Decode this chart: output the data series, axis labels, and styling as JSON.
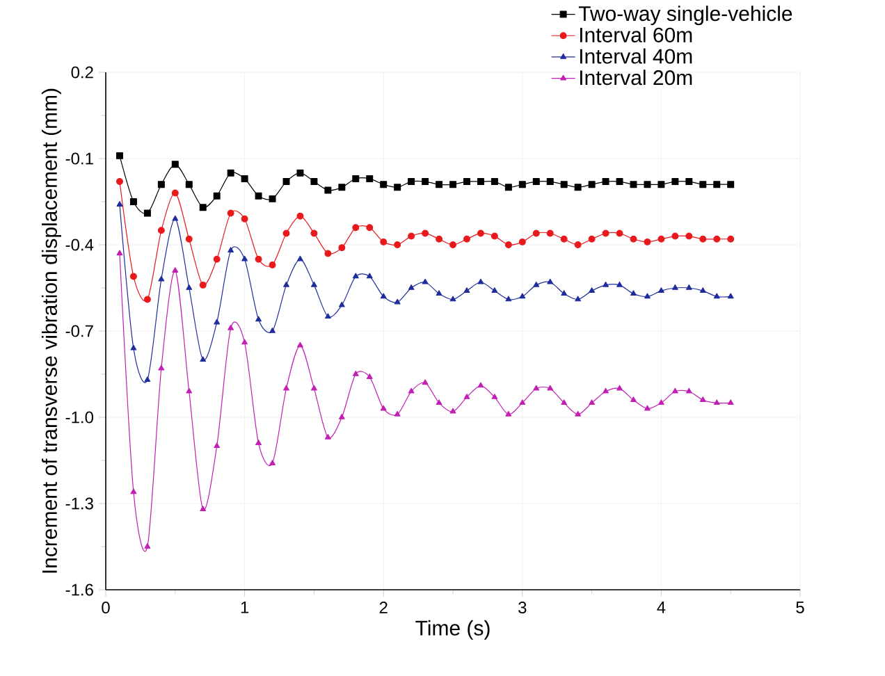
{
  "chart_data": {
    "type": "line",
    "xlabel": "Time (s)",
    "ylabel": "Increment of transverse vibration displacement (mm)",
    "x": [
      0.1,
      0.2,
      0.3,
      0.4,
      0.5,
      0.6,
      0.7,
      0.8,
      0.9,
      1.0,
      1.1,
      1.2,
      1.3,
      1.4,
      1.5,
      1.6,
      1.7,
      1.8,
      1.9,
      2.0,
      2.1,
      2.2,
      2.3,
      2.4,
      2.5,
      2.6,
      2.7,
      2.8,
      2.9,
      3.0,
      3.1,
      3.2,
      3.3,
      3.4,
      3.5,
      3.6,
      3.7,
      3.8,
      3.9,
      4.0,
      4.1,
      4.2,
      4.3,
      4.4,
      4.5
    ],
    "series": [
      {
        "name": "Two-way single-vehicle",
        "color": "#000000",
        "marker": "square",
        "values": [
          -0.09,
          -0.25,
          -0.29,
          -0.19,
          -0.12,
          -0.19,
          -0.27,
          -0.23,
          -0.15,
          -0.17,
          -0.23,
          -0.24,
          -0.18,
          -0.15,
          -0.18,
          -0.21,
          -0.2,
          -0.17,
          -0.17,
          -0.19,
          -0.2,
          -0.18,
          -0.18,
          -0.19,
          -0.19,
          -0.18,
          -0.18,
          -0.18,
          -0.2,
          -0.19,
          -0.18,
          -0.18,
          -0.19,
          -0.2,
          -0.19,
          -0.18,
          -0.18,
          -0.19,
          -0.19,
          -0.19,
          -0.18,
          -0.18,
          -0.19,
          -0.19,
          -0.19
        ]
      },
      {
        "name": "Interval 60m",
        "color": "#e8191c",
        "marker": "circle",
        "values": [
          -0.18,
          -0.51,
          -0.59,
          -0.35,
          -0.22,
          -0.38,
          -0.54,
          -0.45,
          -0.29,
          -0.31,
          -0.45,
          -0.47,
          -0.36,
          -0.3,
          -0.36,
          -0.43,
          -0.41,
          -0.34,
          -0.34,
          -0.39,
          -0.4,
          -0.37,
          -0.36,
          -0.38,
          -0.4,
          -0.38,
          -0.36,
          -0.37,
          -0.4,
          -0.39,
          -0.36,
          -0.36,
          -0.38,
          -0.4,
          -0.38,
          -0.36,
          -0.36,
          -0.38,
          -0.39,
          -0.38,
          -0.37,
          -0.37,
          -0.38,
          -0.38,
          -0.38
        ]
      },
      {
        "name": "Interval 40m",
        "color": "#1f2d9c",
        "marker": "triangle",
        "values": [
          -0.26,
          -0.76,
          -0.87,
          -0.52,
          -0.31,
          -0.55,
          -0.8,
          -0.67,
          -0.42,
          -0.45,
          -0.66,
          -0.7,
          -0.54,
          -0.45,
          -0.54,
          -0.65,
          -0.61,
          -0.51,
          -0.51,
          -0.58,
          -0.6,
          -0.55,
          -0.53,
          -0.57,
          -0.59,
          -0.56,
          -0.53,
          -0.56,
          -0.59,
          -0.58,
          -0.54,
          -0.53,
          -0.57,
          -0.59,
          -0.56,
          -0.54,
          -0.54,
          -0.57,
          -0.58,
          -0.56,
          -0.55,
          -0.55,
          -0.56,
          -0.58,
          -0.58
        ]
      },
      {
        "name": "Interval 20m",
        "color": "#c21fb3",
        "marker": "triangle",
        "values": [
          -0.43,
          -1.26,
          -1.45,
          -0.83,
          -0.49,
          -0.91,
          -1.32,
          -1.1,
          -0.69,
          -0.74,
          -1.09,
          -1.16,
          -0.9,
          -0.75,
          -0.9,
          -1.07,
          -1.0,
          -0.85,
          -0.86,
          -0.97,
          -0.99,
          -0.91,
          -0.88,
          -0.95,
          -0.98,
          -0.93,
          -0.89,
          -0.93,
          -0.99,
          -0.95,
          -0.9,
          -0.9,
          -0.95,
          -0.99,
          -0.95,
          -0.91,
          -0.9,
          -0.94,
          -0.97,
          -0.95,
          -0.91,
          -0.91,
          -0.94,
          -0.95,
          -0.95
        ]
      }
    ],
    "xlim": [
      0,
      5
    ],
    "ylim": [
      -1.6,
      0.2
    ],
    "xticks": [
      0,
      1,
      2,
      3,
      4,
      5
    ],
    "yticks": [
      0.2,
      -0.1,
      -0.4,
      -0.7,
      {
        "value": -1.0,
        "label": "-1.0"
      },
      -1.3,
      -1.6
    ],
    "grid": true,
    "legend": "top right",
    "line_style": "solid"
  }
}
